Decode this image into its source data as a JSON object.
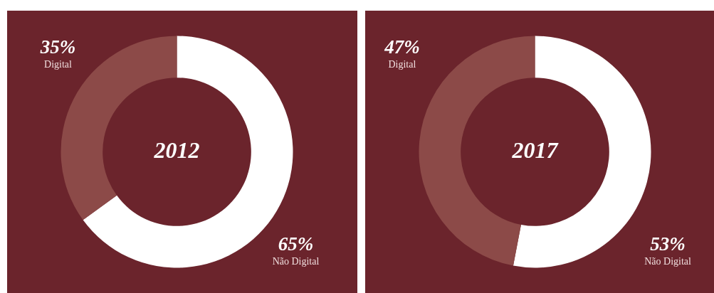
{
  "chart_data": [
    {
      "type": "donut",
      "title": "2012",
      "categories": [
        "Não Digital",
        "Digital"
      ],
      "values": [
        65,
        35
      ],
      "colors": [
        "#ffffff",
        "#8c4a48"
      ],
      "value_labels": [
        "65%",
        "35%"
      ]
    },
    {
      "type": "donut",
      "title": "2017",
      "categories": [
        "Não Digital",
        "Digital"
      ],
      "values": [
        53,
        47
      ],
      "colors": [
        "#ffffff",
        "#8c4a48"
      ],
      "value_labels": [
        "53%",
        "47%"
      ]
    }
  ]
}
